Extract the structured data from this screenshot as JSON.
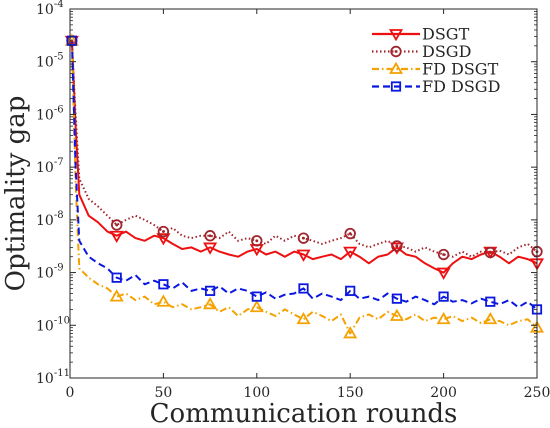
{
  "chart_data": {
    "type": "line",
    "xlabel": "Communication rounds",
    "ylabel": "Optimality gap",
    "x_ticks": [
      0,
      50,
      100,
      150,
      200,
      250
    ],
    "xlim": [
      0,
      250
    ],
    "ylim": [
      1e-11,
      0.0001
    ],
    "y_scale": "log",
    "y_ticks": [
      {
        "value": 1e-11,
        "label": "10^-11"
      },
      {
        "value": 1e-10,
        "label": "10^-10"
      },
      {
        "value": 1e-09,
        "label": "10^-9"
      },
      {
        "value": 1e-08,
        "label": "10^-8"
      },
      {
        "value": 1e-07,
        "label": "10^-7"
      },
      {
        "value": 1e-06,
        "label": "10^-6"
      },
      {
        "value": 1e-05,
        "label": "10^-5"
      },
      {
        "value": 0.0001,
        "label": "10^-4"
      }
    ],
    "legend_position": "top-right",
    "series": [
      {
        "name": "DSGT",
        "color": "#ee1010",
        "line_style": "solid",
        "marker": "triangle-down",
        "x": [
          1,
          3,
          5,
          10,
          15,
          20,
          25,
          30,
          35,
          40,
          45,
          50,
          55,
          60,
          65,
          70,
          75,
          80,
          85,
          90,
          95,
          100,
          105,
          110,
          115,
          120,
          125,
          130,
          135,
          140,
          145,
          150,
          155,
          160,
          165,
          170,
          175,
          180,
          185,
          190,
          195,
          200,
          205,
          210,
          215,
          220,
          225,
          230,
          235,
          240,
          245,
          250
        ],
        "y": [
          2.5e-05,
          6e-07,
          3e-08,
          1.2e-08,
          9e-09,
          6e-09,
          5e-09,
          6e-09,
          4.5e-09,
          4e-09,
          5e-09,
          4.5e-09,
          3.5e-09,
          2.8e-09,
          3e-09,
          2.5e-09,
          3e-09,
          2.5e-09,
          2.2e-09,
          2e-09,
          2.5e-09,
          2.8e-09,
          2.2e-09,
          2.5e-09,
          2e-09,
          2.5e-09,
          2.2e-09,
          1.8e-09,
          2e-09,
          2.2e-09,
          1.8e-09,
          2.5e-09,
          2e-09,
          1.5e-09,
          2e-09,
          2.2e-09,
          3e-09,
          2.2e-09,
          2e-09,
          1.5e-09,
          1.2e-09,
          1e-09,
          1.5e-09,
          2e-09,
          1.8e-09,
          2.2e-09,
          2.5e-09,
          2e-09,
          1.5e-09,
          2e-09,
          1.8e-09,
          1.5e-09
        ],
        "marker_x": [
          1,
          25,
          50,
          75,
          100,
          125,
          150,
          175,
          200,
          225,
          250
        ]
      },
      {
        "name": "DSGD",
        "color": "#a0252d",
        "line_style": "dotted",
        "marker": "circle",
        "x": [
          1,
          3,
          5,
          10,
          15,
          20,
          25,
          30,
          35,
          40,
          45,
          50,
          55,
          60,
          65,
          70,
          75,
          80,
          85,
          90,
          95,
          100,
          105,
          110,
          115,
          120,
          125,
          130,
          135,
          140,
          145,
          150,
          155,
          160,
          165,
          170,
          175,
          180,
          185,
          190,
          195,
          200,
          205,
          210,
          215,
          220,
          225,
          230,
          235,
          240,
          245,
          250
        ],
        "y": [
          2.5e-05,
          1e-06,
          6e-08,
          2.5e-08,
          1.8e-08,
          1.2e-08,
          8e-09,
          1e-08,
          1.2e-08,
          1e-08,
          8e-09,
          6e-09,
          7e-09,
          5e-09,
          4.5e-09,
          5e-09,
          5e-09,
          4.5e-09,
          6e-09,
          4e-09,
          4.5e-09,
          4e-09,
          3.5e-09,
          5e-09,
          4e-09,
          5e-09,
          4.5e-09,
          4e-09,
          3.5e-09,
          4e-09,
          4.5e-09,
          5.5e-09,
          3.5e-09,
          3e-09,
          3.5e-09,
          4e-09,
          3.2e-09,
          3e-09,
          2.5e-09,
          3e-09,
          2.5e-09,
          2.2e-09,
          2e-09,
          2.5e-09,
          2e-09,
          2.5e-09,
          2.4e-09,
          2.6e-09,
          2.2e-09,
          3e-09,
          3.5e-09,
          2.5e-09
        ],
        "marker_x": [
          1,
          25,
          50,
          75,
          100,
          125,
          150,
          175,
          200,
          225,
          250
        ]
      },
      {
        "name": "FD DSGT",
        "color": "#f5a100",
        "line_style": "dash-dot",
        "marker": "triangle-up",
        "x": [
          1,
          3,
          5,
          10,
          15,
          20,
          25,
          30,
          35,
          40,
          45,
          50,
          55,
          60,
          65,
          70,
          75,
          80,
          85,
          90,
          95,
          100,
          105,
          110,
          115,
          120,
          125,
          130,
          135,
          140,
          145,
          150,
          155,
          160,
          165,
          170,
          175,
          180,
          185,
          190,
          195,
          200,
          205,
          210,
          215,
          220,
          225,
          230,
          235,
          240,
          245,
          250
        ],
        "y": [
          2.5e-05,
          5e-08,
          1.2e-09,
          8e-10,
          6e-10,
          5e-10,
          3.5e-10,
          4e-10,
          3e-10,
          3.5e-10,
          2.5e-10,
          2.8e-10,
          2.2e-10,
          2.5e-10,
          2e-10,
          2.2e-10,
          2.5e-10,
          1.8e-10,
          2.2e-10,
          1.5e-10,
          2e-10,
          2.2e-10,
          1.8e-10,
          1.5e-10,
          2e-10,
          1.6e-10,
          1.3e-10,
          1.8e-10,
          1.5e-10,
          1.2e-10,
          1.6e-10,
          7e-11,
          1.4e-10,
          1.6e-10,
          1.3e-10,
          1.8e-10,
          1.5e-10,
          1.3e-10,
          1.6e-10,
          1.2e-10,
          1.4e-10,
          1.3e-10,
          1.5e-10,
          1.2e-10,
          1.4e-10,
          1.1e-10,
          1.3e-10,
          1.2e-10,
          1e-10,
          1.2e-10,
          1.3e-10,
          9e-11
        ],
        "marker_x": [
          1,
          25,
          50,
          75,
          100,
          125,
          150,
          175,
          200,
          225,
          250
        ]
      },
      {
        "name": "FD DSGD",
        "color": "#0b18e0",
        "line_style": "dashed",
        "marker": "square",
        "x": [
          1,
          3,
          5,
          10,
          15,
          20,
          25,
          30,
          35,
          40,
          45,
          50,
          55,
          60,
          65,
          70,
          75,
          80,
          85,
          90,
          95,
          100,
          105,
          110,
          115,
          120,
          125,
          130,
          135,
          140,
          145,
          150,
          155,
          160,
          165,
          170,
          175,
          180,
          185,
          190,
          195,
          200,
          205,
          210,
          215,
          220,
          225,
          230,
          235,
          240,
          245,
          250
        ],
        "y": [
          2.5e-05,
          1e-07,
          4e-09,
          2e-09,
          1.5e-09,
          1.2e-09,
          8e-10,
          7e-10,
          9e-10,
          6e-10,
          7e-10,
          6e-10,
          5e-10,
          6.5e-10,
          4.5e-10,
          5e-10,
          4.5e-10,
          5.5e-10,
          4e-10,
          5e-10,
          4.5e-10,
          3.5e-10,
          4.2e-10,
          3.2e-10,
          3.8e-10,
          4e-10,
          5e-10,
          3.2e-10,
          4e-10,
          3.5e-10,
          3e-10,
          4.5e-10,
          3.2e-10,
          3.5e-10,
          3e-10,
          4e-10,
          3.2e-10,
          2.8e-10,
          3.5e-10,
          3e-10,
          2.5e-10,
          3.5e-10,
          2.8e-10,
          3e-10,
          2.6e-10,
          3.2e-10,
          2.8e-10,
          2.5e-10,
          3e-10,
          2.2e-10,
          2.8e-10,
          2e-10
        ],
        "marker_x": [
          1,
          25,
          50,
          75,
          100,
          125,
          150,
          175,
          200,
          225,
          250
        ]
      }
    ]
  }
}
